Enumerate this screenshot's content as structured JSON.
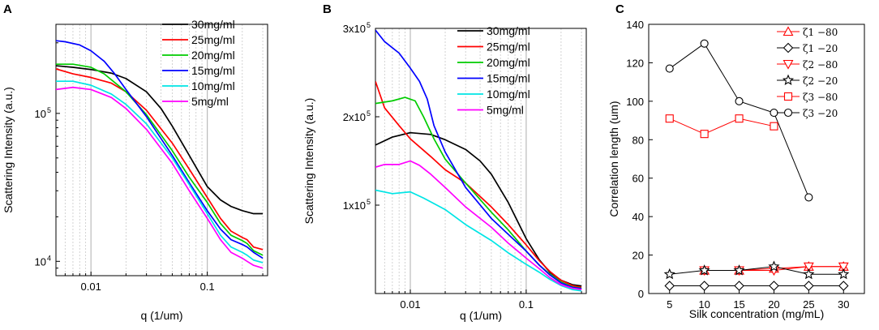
{
  "chart_data": [
    {
      "panel": "A",
      "type": "line",
      "xscale": "log",
      "yscale": "log",
      "xlabel": "q (1/um)",
      "ylabel": "Scattering Intensity (a.u.)",
      "xlim": [
        0.005,
        0.33
      ],
      "ylim": [
        8000,
        400000
      ],
      "xticks": [
        {
          "v": 0.01,
          "label": "0.01"
        },
        {
          "v": 0.1,
          "label": "0.1"
        }
      ],
      "yticks": [
        {
          "v": 10000,
          "label": "10",
          "exp": "4"
        },
        {
          "v": 100000,
          "label": "10",
          "exp": "5"
        }
      ],
      "grid": "vertical-dotted",
      "legend_position": "top-right",
      "series": [
        {
          "name": "30mg/ml",
          "color": "#000000",
          "x": [
            0.005,
            0.007,
            0.01,
            0.015,
            0.02,
            0.03,
            0.04,
            0.05,
            0.07,
            0.1,
            0.13,
            0.16,
            0.2,
            0.25,
            0.3
          ],
          "y": [
            210000,
            205000,
            198000,
            187000,
            172000,
            140000,
            108000,
            82000,
            52000,
            32000,
            26000,
            23500,
            22000,
            21000,
            21000
          ]
        },
        {
          "name": "25mg/ml",
          "color": "#ff0000",
          "x": [
            0.005,
            0.007,
            0.01,
            0.015,
            0.02,
            0.03,
            0.05,
            0.07,
            0.1,
            0.13,
            0.16,
            0.2,
            0.22,
            0.25,
            0.3
          ],
          "y": [
            200000,
            185000,
            175000,
            160000,
            140000,
            105000,
            63000,
            42000,
            27000,
            19500,
            16000,
            14500,
            14000,
            12500,
            12000
          ]
        },
        {
          "name": "20mg/ml",
          "color": "#00cc00",
          "x": [
            0.005,
            0.007,
            0.01,
            0.013,
            0.02,
            0.03,
            0.05,
            0.07,
            0.1,
            0.13,
            0.16,
            0.2,
            0.22,
            0.25,
            0.3
          ],
          "y": [
            215000,
            215000,
            205000,
            185000,
            140000,
            98000,
            56000,
            37000,
            25000,
            18000,
            15000,
            13800,
            13200,
            11800,
            11000
          ]
        },
        {
          "name": "15mg/ml",
          "color": "#0000ff",
          "x": [
            0.005,
            0.006,
            0.008,
            0.01,
            0.013,
            0.016,
            0.02,
            0.03,
            0.05,
            0.07,
            0.1,
            0.13,
            0.16,
            0.2,
            0.22,
            0.25,
            0.3
          ],
          "y": [
            310000,
            305000,
            290000,
            265000,
            225000,
            185000,
            145000,
            95000,
            52000,
            34000,
            22000,
            16500,
            14000,
            13000,
            12500,
            11500,
            10500
          ]
        },
        {
          "name": "10mg/ml",
          "color": "#00e5e5",
          "x": [
            0.005,
            0.007,
            0.01,
            0.015,
            0.02,
            0.03,
            0.05,
            0.07,
            0.1,
            0.13,
            0.16,
            0.2,
            0.22,
            0.25,
            0.3
          ],
          "y": [
            165000,
            165000,
            155000,
            135000,
            115000,
            85000,
            50000,
            33000,
            21000,
            15000,
            12500,
            11500,
            11000,
            10200,
            9800
          ]
        },
        {
          "name": "5mg/ml",
          "color": "#ff00ff",
          "x": [
            0.005,
            0.007,
            0.01,
            0.015,
            0.02,
            0.03,
            0.05,
            0.07,
            0.1,
            0.13,
            0.16,
            0.2,
            0.22,
            0.25,
            0.3
          ],
          "y": [
            145000,
            150000,
            145000,
            128000,
            108000,
            78000,
            46000,
            30000,
            19500,
            14000,
            11500,
            10500,
            10000,
            9400,
            9000
          ]
        }
      ]
    },
    {
      "panel": "B",
      "type": "line",
      "xscale": "log",
      "yscale": "linear",
      "xlabel": "q (1/um)",
      "ylabel": "Scattering Intensity (a.u.)",
      "xlim": [
        0.005,
        0.33
      ],
      "ylim": [
        0,
        300000
      ],
      "xticks": [
        {
          "v": 0.01,
          "label": "0.01"
        },
        {
          "v": 0.1,
          "label": "0.1"
        }
      ],
      "yticks": [
        {
          "v": 100000,
          "label": "1x10",
          "exp": "5"
        },
        {
          "v": 200000,
          "label": "2x10",
          "exp": "5"
        },
        {
          "v": 300000,
          "label": "3x10",
          "exp": "5"
        }
      ],
      "grid": "vertical-dotted",
      "legend_position": "top-right",
      "series": [
        {
          "name": "30mg/ml",
          "color": "#000000",
          "x": [
            0.005,
            0.007,
            0.01,
            0.015,
            0.02,
            0.03,
            0.04,
            0.05,
            0.07,
            0.1,
            0.13,
            0.16,
            0.2,
            0.25,
            0.3
          ],
          "y": [
            168000,
            177000,
            182000,
            180000,
            174000,
            163000,
            150000,
            135000,
            103000,
            62000,
            38000,
            24000,
            15000,
            10000,
            8500
          ]
        },
        {
          "name": "25mg/ml",
          "color": "#ff0000",
          "x": [
            0.005,
            0.006,
            0.008,
            0.01,
            0.015,
            0.02,
            0.03,
            0.05,
            0.07,
            0.1,
            0.13,
            0.16,
            0.2,
            0.25,
            0.3
          ],
          "y": [
            240000,
            210000,
            190000,
            175000,
            155000,
            140000,
            125000,
            98000,
            78000,
            55000,
            37000,
            25000,
            15000,
            9000,
            7000
          ]
        },
        {
          "name": "20mg/ml",
          "color": "#00cc00",
          "x": [
            0.005,
            0.007,
            0.009,
            0.011,
            0.013,
            0.016,
            0.02,
            0.03,
            0.05,
            0.07,
            0.1,
            0.13,
            0.16,
            0.2,
            0.25,
            0.3
          ],
          "y": [
            215000,
            218000,
            222000,
            218000,
            200000,
            175000,
            152000,
            125000,
            92000,
            72000,
            48000,
            32000,
            22000,
            13000,
            7500,
            6000
          ]
        },
        {
          "name": "15mg/ml",
          "color": "#0000ff",
          "x": [
            0.005,
            0.006,
            0.008,
            0.01,
            0.012,
            0.014,
            0.016,
            0.02,
            0.03,
            0.05,
            0.07,
            0.1,
            0.13,
            0.16,
            0.2,
            0.25,
            0.3
          ],
          "y": [
            298000,
            285000,
            272000,
            255000,
            240000,
            220000,
            190000,
            160000,
            120000,
            85000,
            67000,
            48000,
            32000,
            21000,
            12000,
            7000,
            5500
          ]
        },
        {
          "name": "10mg/ml",
          "color": "#00e5e5",
          "x": [
            0.005,
            0.007,
            0.01,
            0.013,
            0.02,
            0.03,
            0.05,
            0.07,
            0.1,
            0.13,
            0.16,
            0.2,
            0.25,
            0.3
          ],
          "y": [
            117000,
            113000,
            115000,
            108000,
            95000,
            78000,
            60000,
            46000,
            33000,
            24000,
            16000,
            9000,
            4500,
            3000
          ]
        },
        {
          "name": "5mg/ml",
          "color": "#ff00ff",
          "x": [
            0.005,
            0.006,
            0.008,
            0.01,
            0.012,
            0.015,
            0.02,
            0.03,
            0.05,
            0.07,
            0.1,
            0.13,
            0.16,
            0.2,
            0.25,
            0.3
          ],
          "y": [
            143000,
            146000,
            146000,
            150000,
            145000,
            135000,
            120000,
            98000,
            75000,
            57000,
            40000,
            28000,
            18000,
            10000,
            6000,
            4500
          ]
        }
      ]
    },
    {
      "panel": "C",
      "type": "line",
      "xscale": "linear",
      "yscale": "linear",
      "xlabel": "Silk concentration (mg/mL)",
      "ylabel": "Correlation length (um)",
      "xlim": [
        2,
        33
      ],
      "ylim": [
        0,
        140
      ],
      "xticks": [
        {
          "v": 5,
          "label": "5"
        },
        {
          "v": 10,
          "label": "10"
        },
        {
          "v": 15,
          "label": "15"
        },
        {
          "v": 20,
          "label": "20"
        },
        {
          "v": 25,
          "label": "25"
        },
        {
          "v": 30,
          "label": "30"
        }
      ],
      "yticks": [
        {
          "v": 0,
          "label": "0"
        },
        {
          "v": 20,
          "label": "20"
        },
        {
          "v": 40,
          "label": "40"
        },
        {
          "v": 60,
          "label": "60"
        },
        {
          "v": 80,
          "label": "80"
        },
        {
          "v": 100,
          "label": "100"
        },
        {
          "v": 120,
          "label": "120"
        },
        {
          "v": 140,
          "label": "140"
        }
      ],
      "grid": "none",
      "legend_position": "top-right",
      "series": [
        {
          "name": "ζ1 −80",
          "color": "#ff0000",
          "marker": "triangle-up",
          "x": [
            10,
            15,
            20,
            25,
            30
          ],
          "y": [
            12,
            12,
            13,
            14,
            14
          ]
        },
        {
          "name": "ζ1 −20",
          "color": "#000000",
          "marker": "diamond",
          "x": [
            5,
            10,
            15,
            20,
            25,
            30
          ],
          "y": [
            4,
            4,
            4,
            4,
            4,
            4
          ]
        },
        {
          "name": "ζ2 −80",
          "color": "#ff0000",
          "marker": "triangle-down",
          "x": [
            10,
            15,
            20,
            25,
            30
          ],
          "y": [
            12,
            12,
            12,
            14,
            14
          ]
        },
        {
          "name": "ζ2 −20",
          "color": "#000000",
          "marker": "star",
          "x": [
            5,
            10,
            15,
            20,
            25,
            30
          ],
          "y": [
            10,
            12,
            12,
            14,
            10,
            10
          ]
        },
        {
          "name": "ζ3 −80",
          "color": "#ff0000",
          "marker": "square",
          "x": [
            5,
            10,
            15,
            20
          ],
          "y": [
            91,
            83,
            91,
            87
          ]
        },
        {
          "name": "ζ3 −20",
          "color": "#000000",
          "marker": "circle",
          "x": [
            5,
            10,
            15,
            20,
            25
          ],
          "y": [
            117,
            130,
            100,
            94,
            50
          ]
        }
      ]
    }
  ]
}
